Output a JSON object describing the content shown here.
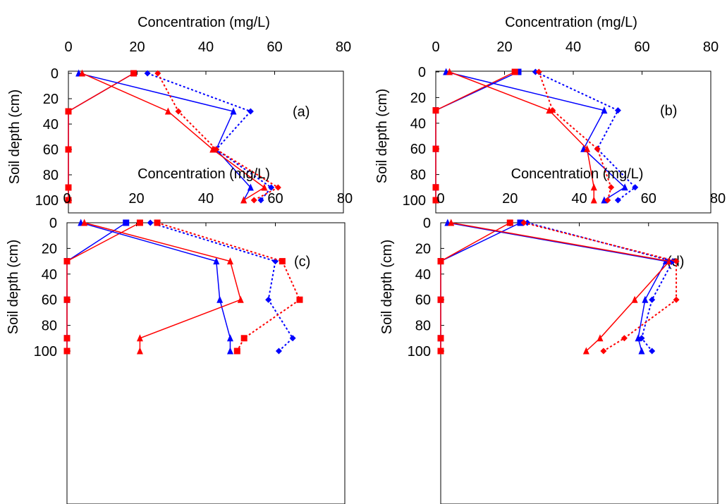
{
  "colors": {
    "blue": "#0000ff",
    "red": "#ff0000",
    "axis": "#000000"
  },
  "chart_data": [
    {
      "type": "line",
      "label": "(a)",
      "xlabel": "Concentration (mg/L)",
      "ylabel": "Soil depth (cm)",
      "xlim": [
        0,
        80
      ],
      "ylim": [
        0,
        100
      ],
      "x_ticks": [
        0,
        20,
        40,
        60,
        80
      ],
      "y_ticks": [
        0,
        20,
        40,
        60,
        80,
        100
      ],
      "depths": [
        0,
        30,
        60,
        90,
        100
      ],
      "series": [
        {
          "color": "blue",
          "marker": "square",
          "dash": false,
          "values": [
            19,
            0,
            0,
            0,
            0
          ]
        },
        {
          "color": "red",
          "marker": "square",
          "dash": false,
          "values": [
            19,
            0,
            0,
            0,
            0
          ]
        },
        {
          "color": "blue",
          "marker": "triangle",
          "dash": false,
          "values": [
            3,
            48,
            43,
            53,
            51
          ]
        },
        {
          "color": "red",
          "marker": "triangle",
          "dash": false,
          "values": [
            4,
            29,
            42,
            57,
            51
          ]
        },
        {
          "color": "blue",
          "marker": "diamond",
          "dash": true,
          "values": [
            23,
            53,
            43,
            59,
            56
          ]
        },
        {
          "color": "red",
          "marker": "diamond",
          "dash": true,
          "values": [
            26,
            32,
            43,
            61,
            54
          ]
        }
      ]
    },
    {
      "type": "line",
      "label": "(b)",
      "xlabel": "Concentration (mg/L)",
      "ylabel": "Soil depth (cm)",
      "xlim": [
        0,
        80
      ],
      "ylim": [
        0,
        100
      ],
      "x_ticks": [
        0,
        20,
        40,
        60,
        80
      ],
      "y_ticks": [
        0,
        20,
        40,
        60,
        80,
        100
      ],
      "depths": [
        0,
        30,
        60,
        90,
        100
      ],
      "series": [
        {
          "color": "blue",
          "marker": "square",
          "dash": false,
          "values": [
            24,
            0,
            0,
            0,
            0
          ]
        },
        {
          "color": "red",
          "marker": "square",
          "dash": false,
          "values": [
            23,
            0,
            0,
            0,
            0
          ]
        },
        {
          "color": "blue",
          "marker": "triangle",
          "dash": false,
          "values": [
            3,
            49,
            43,
            55,
            49
          ]
        },
        {
          "color": "red",
          "marker": "triangle",
          "dash": false,
          "values": [
            4,
            33,
            44,
            46,
            46
          ]
        },
        {
          "color": "blue",
          "marker": "diamond",
          "dash": true,
          "values": [
            29,
            53,
            47,
            58,
            53
          ]
        },
        {
          "color": "red",
          "marker": "diamond",
          "dash": true,
          "values": [
            30,
            34,
            47,
            51,
            50
          ]
        }
      ]
    },
    {
      "type": "line",
      "label": "(c)",
      "xlabel": "Concentration (mg/L)",
      "ylabel": "Soil depth (cm)",
      "xlim": [
        0,
        80
      ],
      "ylim": [
        0,
        100
      ],
      "x_ticks": [
        0,
        20,
        40,
        60,
        80
      ],
      "y_ticks": [
        0,
        20,
        40,
        60,
        80,
        100
      ],
      "depths": [
        0,
        30,
        60,
        90,
        100
      ],
      "series": [
        {
          "color": "blue",
          "marker": "square",
          "dash": false,
          "values": [
            17,
            0,
            0,
            0,
            0
          ]
        },
        {
          "color": "red",
          "marker": "square",
          "dash": false,
          "values": [
            21,
            0,
            0,
            0,
            0
          ]
        },
        {
          "color": "blue",
          "marker": "triangle",
          "dash": false,
          "values": [
            4,
            43,
            44,
            47,
            47
          ]
        },
        {
          "color": "red",
          "marker": "triangle",
          "dash": false,
          "values": [
            5,
            47,
            50,
            21,
            21
          ]
        },
        {
          "color": "blue",
          "marker": "diamond",
          "dash": true,
          "values": [
            24,
            60,
            58,
            65,
            61
          ]
        },
        {
          "color": "red",
          "marker": "square",
          "dash": true,
          "values": [
            26,
            62,
            67,
            51,
            49
          ]
        }
      ]
    },
    {
      "type": "line",
      "label": "(d)",
      "xlabel": "Concentration (mg/L)",
      "ylabel": "Soil depth (cm)",
      "xlim": [
        0,
        80
      ],
      "ylim": [
        0,
        100
      ],
      "x_ticks": [
        0,
        20,
        40,
        60,
        80
      ],
      "y_ticks": [
        0,
        20,
        40,
        60,
        80,
        100
      ],
      "depths": [
        0,
        30,
        60,
        90,
        100
      ],
      "series": [
        {
          "color": "blue",
          "marker": "square",
          "dash": false,
          "values": [
            23,
            0,
            0,
            0,
            0
          ]
        },
        {
          "color": "red",
          "marker": "square",
          "dash": false,
          "values": [
            20,
            0,
            0,
            0,
            0
          ]
        },
        {
          "color": "blue",
          "marker": "triangle",
          "dash": false,
          "values": [
            2,
            65,
            59,
            57,
            58
          ]
        },
        {
          "color": "red",
          "marker": "triangle",
          "dash": false,
          "values": [
            3,
            66,
            56,
            46,
            42
          ]
        },
        {
          "color": "blue",
          "marker": "diamond",
          "dash": true,
          "values": [
            25,
            67,
            61,
            58,
            61
          ]
        },
        {
          "color": "red",
          "marker": "diamond",
          "dash": true,
          "values": [
            24,
            68,
            68,
            53,
            47
          ]
        }
      ]
    }
  ]
}
